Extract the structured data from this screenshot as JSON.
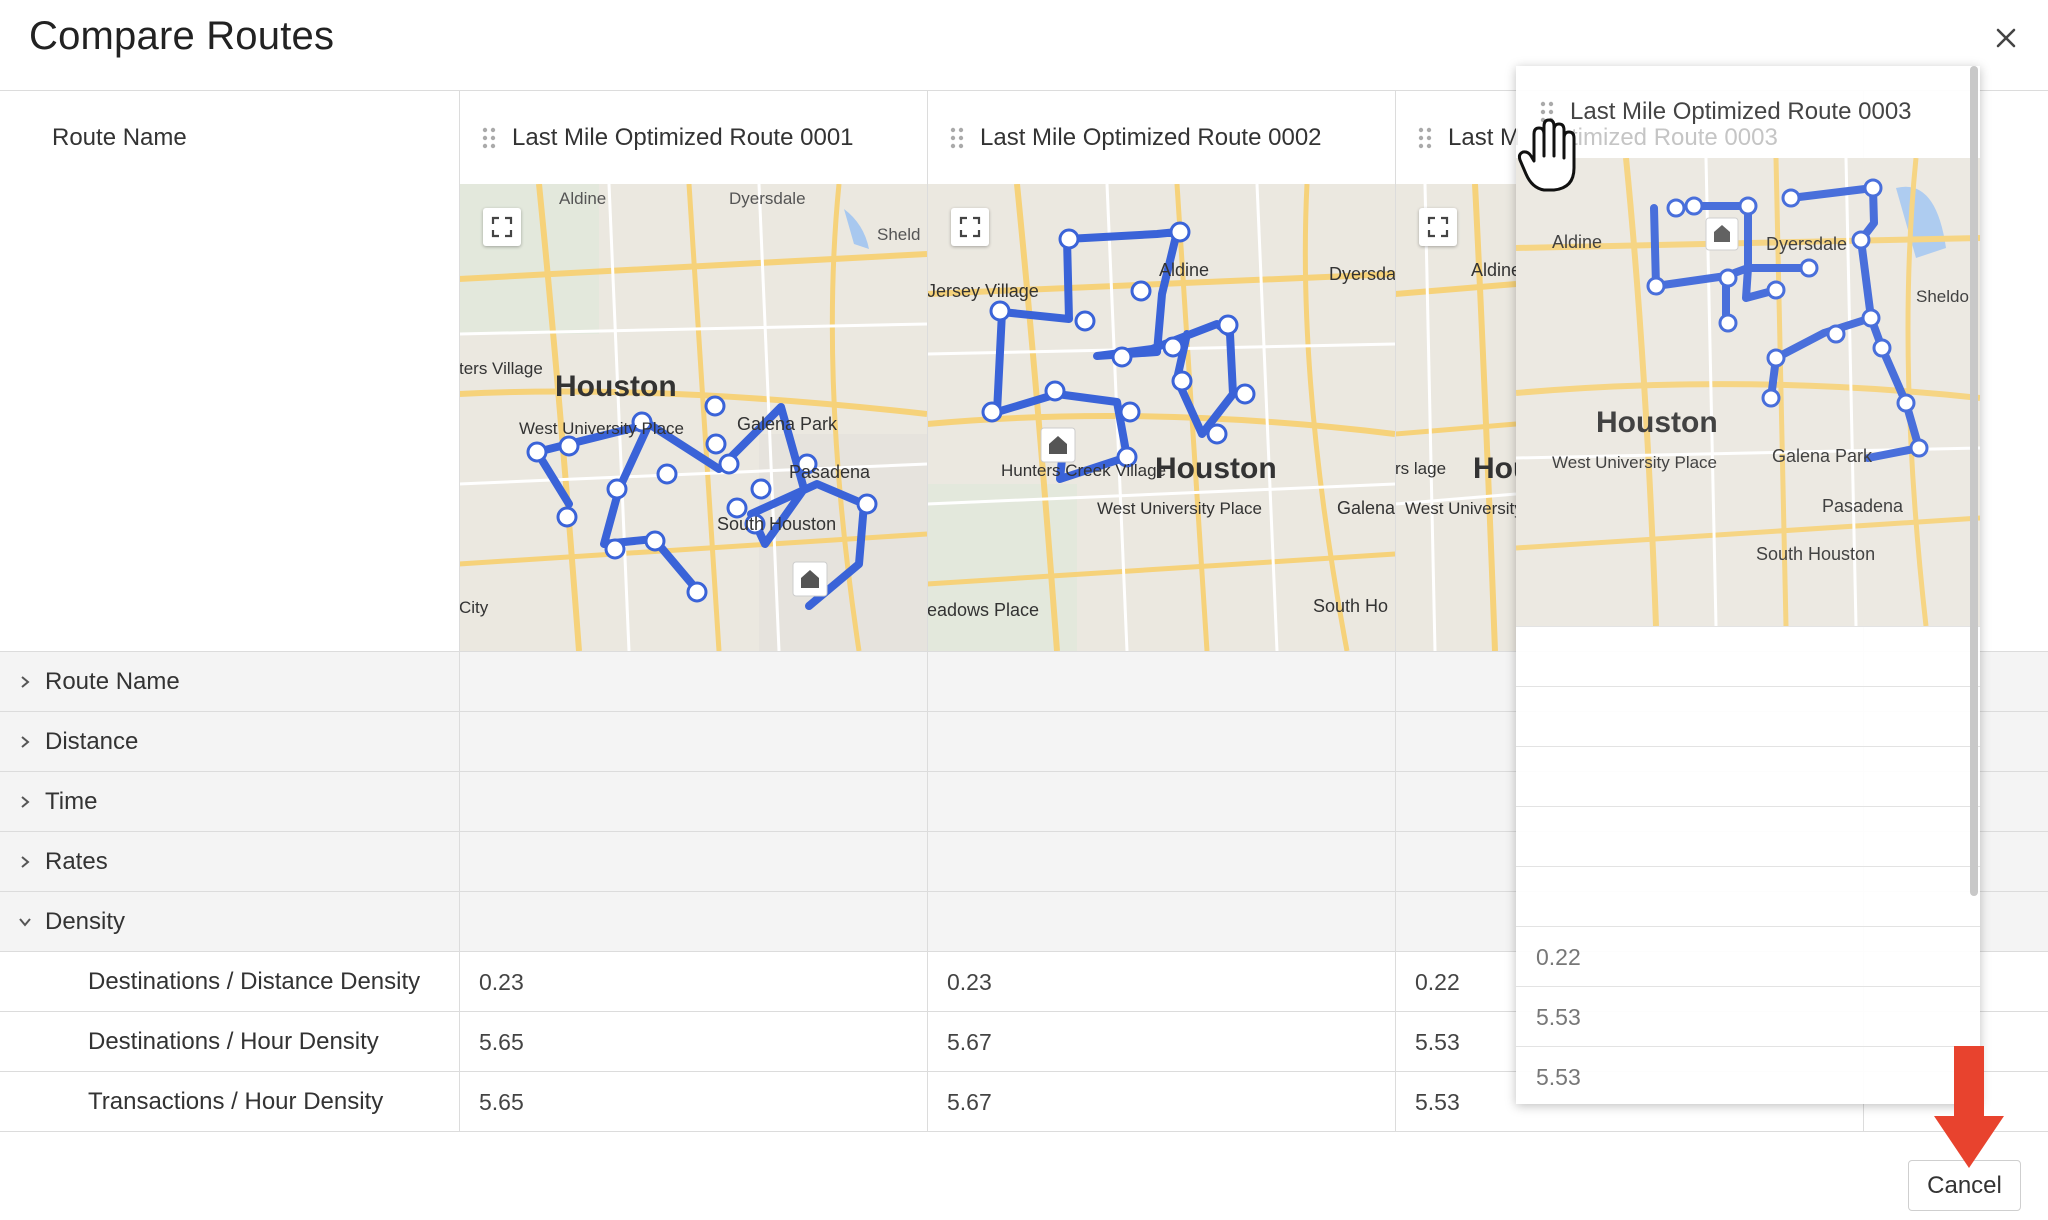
{
  "dialog": {
    "title": "Compare Routes",
    "close_icon": "close-icon"
  },
  "table": {
    "first_column_header": "Route Name",
    "routes": [
      {
        "name": "Last Mile Optimized Route 0001",
        "map_labels": [
          "Aldine",
          "Dyersdale",
          "Sheld",
          "Houston",
          "Galena Park",
          "West University Place",
          "Pasadena",
          "South Houston",
          "ters Village",
          "City"
        ],
        "density": [
          "0.23",
          "5.65",
          "5.65"
        ]
      },
      {
        "name": "Last Mile Optimized Route 0002",
        "map_labels": [
          "Jersey Village",
          "Aldine",
          "Dyersda",
          "Houston",
          "West University Place",
          "Galena",
          "South Ho",
          "eadows Place",
          "Hunters Creek Village"
        ],
        "density": [
          "0.23",
          "5.67",
          "5.67"
        ]
      },
      {
        "name": "Last Mile Optimized Route 0003",
        "header_visible": "Last M",
        "map_labels": [
          "Aldine",
          "rs lage",
          "Hou",
          "West University Place"
        ],
        "density": [
          "0.22",
          "5.53",
          "5.53"
        ]
      }
    ],
    "groups": [
      {
        "label": "Route Name",
        "expanded": false
      },
      {
        "label": "Distance",
        "expanded": false
      },
      {
        "label": "Time",
        "expanded": false
      },
      {
        "label": "Rates",
        "expanded": false
      },
      {
        "label": "Density",
        "expanded": true
      }
    ],
    "density_rows": [
      "Destinations / Distance Density",
      "Destinations / Hour Density",
      "Transactions / Hour Density"
    ]
  },
  "drag_ghost": {
    "header": "Last Mile Optimized Route 0003",
    "header_shadow": "timized Route 0003",
    "map_labels": [
      "Aldine",
      "Dyersdale",
      "Sheldon",
      "Houston",
      "West University Place",
      "Galena Park",
      "Pasadena",
      "South Houston"
    ],
    "values": [
      "0.22",
      "5.53",
      "5.53"
    ]
  },
  "footer": {
    "cancel_label": "Cancel"
  },
  "colors": {
    "route_line": "#3a63d8",
    "arrow": "#e8432e",
    "group_row_bg": "#f4f4f4",
    "border": "#dcdcdc"
  },
  "icons": {
    "drag": "drag-handle-icon",
    "fullscreen": "fullscreen-icon",
    "chevron_right": "chevron-right-icon",
    "chevron_down": "chevron-down-icon",
    "home": "home-depot-icon",
    "cursor": "grab-hand-icon"
  }
}
